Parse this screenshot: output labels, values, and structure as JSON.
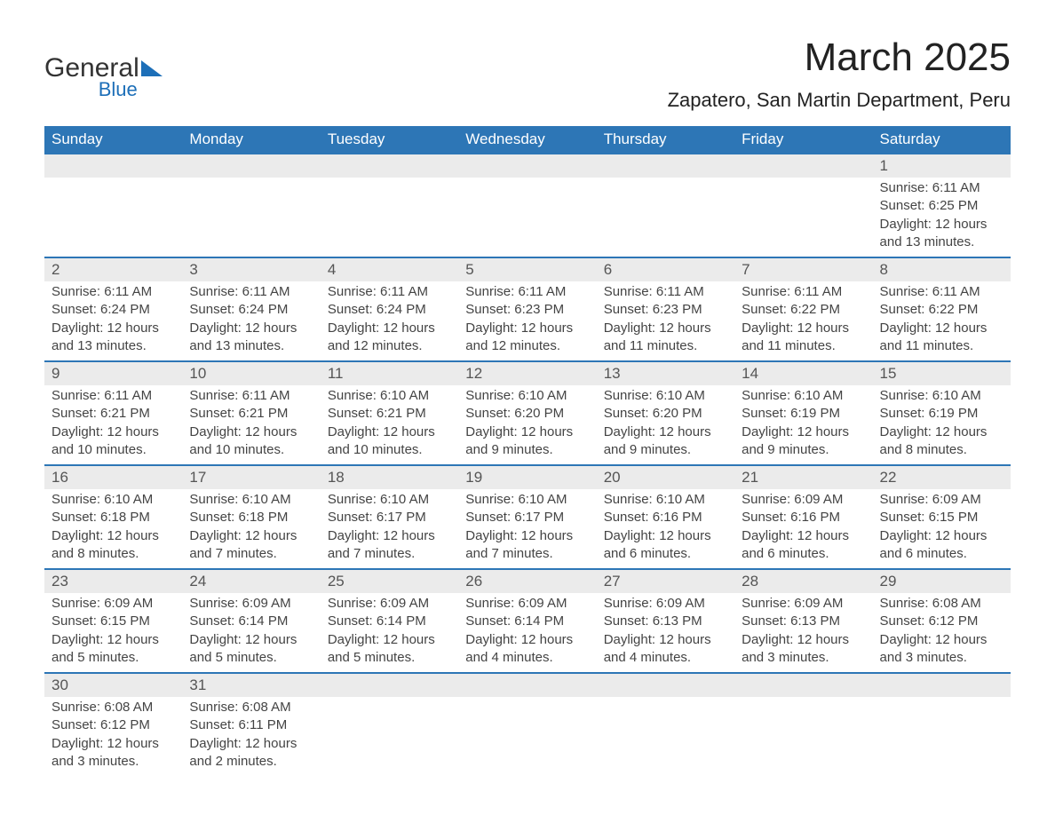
{
  "header": {
    "logo_text_1": "General",
    "logo_text_2": "Blue",
    "month_title": "March 2025",
    "location": "Zapatero, San Martin Department, Peru"
  },
  "styling": {
    "header_bg": "#2d76b6",
    "header_text_color": "#ffffff",
    "daynum_bg": "#ebebeb",
    "body_text_color": "#444444",
    "row_border_color": "#2d76b6",
    "logo_accent": "#1d6fb8",
    "title_fontsize": 44,
    "location_fontsize": 22,
    "dow_fontsize": 17,
    "daynum_fontsize": 17,
    "data_fontsize": 15
  },
  "days_of_week": [
    "Sunday",
    "Monday",
    "Tuesday",
    "Wednesday",
    "Thursday",
    "Friday",
    "Saturday"
  ],
  "weeks": [
    [
      null,
      null,
      null,
      null,
      null,
      null,
      {
        "n": "1",
        "sunrise": "6:11 AM",
        "sunset": "6:25 PM",
        "daylight": "12 hours and 13 minutes."
      }
    ],
    [
      {
        "n": "2",
        "sunrise": "6:11 AM",
        "sunset": "6:24 PM",
        "daylight": "12 hours and 13 minutes."
      },
      {
        "n": "3",
        "sunrise": "6:11 AM",
        "sunset": "6:24 PM",
        "daylight": "12 hours and 13 minutes."
      },
      {
        "n": "4",
        "sunrise": "6:11 AM",
        "sunset": "6:24 PM",
        "daylight": "12 hours and 12 minutes."
      },
      {
        "n": "5",
        "sunrise": "6:11 AM",
        "sunset": "6:23 PM",
        "daylight": "12 hours and 12 minutes."
      },
      {
        "n": "6",
        "sunrise": "6:11 AM",
        "sunset": "6:23 PM",
        "daylight": "12 hours and 11 minutes."
      },
      {
        "n": "7",
        "sunrise": "6:11 AM",
        "sunset": "6:22 PM",
        "daylight": "12 hours and 11 minutes."
      },
      {
        "n": "8",
        "sunrise": "6:11 AM",
        "sunset": "6:22 PM",
        "daylight": "12 hours and 11 minutes."
      }
    ],
    [
      {
        "n": "9",
        "sunrise": "6:11 AM",
        "sunset": "6:21 PM",
        "daylight": "12 hours and 10 minutes."
      },
      {
        "n": "10",
        "sunrise": "6:11 AM",
        "sunset": "6:21 PM",
        "daylight": "12 hours and 10 minutes."
      },
      {
        "n": "11",
        "sunrise": "6:10 AM",
        "sunset": "6:21 PM",
        "daylight": "12 hours and 10 minutes."
      },
      {
        "n": "12",
        "sunrise": "6:10 AM",
        "sunset": "6:20 PM",
        "daylight": "12 hours and 9 minutes."
      },
      {
        "n": "13",
        "sunrise": "6:10 AM",
        "sunset": "6:20 PM",
        "daylight": "12 hours and 9 minutes."
      },
      {
        "n": "14",
        "sunrise": "6:10 AM",
        "sunset": "6:19 PM",
        "daylight": "12 hours and 9 minutes."
      },
      {
        "n": "15",
        "sunrise": "6:10 AM",
        "sunset": "6:19 PM",
        "daylight": "12 hours and 8 minutes."
      }
    ],
    [
      {
        "n": "16",
        "sunrise": "6:10 AM",
        "sunset": "6:18 PM",
        "daylight": "12 hours and 8 minutes."
      },
      {
        "n": "17",
        "sunrise": "6:10 AM",
        "sunset": "6:18 PM",
        "daylight": "12 hours and 7 minutes."
      },
      {
        "n": "18",
        "sunrise": "6:10 AM",
        "sunset": "6:17 PM",
        "daylight": "12 hours and 7 minutes."
      },
      {
        "n": "19",
        "sunrise": "6:10 AM",
        "sunset": "6:17 PM",
        "daylight": "12 hours and 7 minutes."
      },
      {
        "n": "20",
        "sunrise": "6:10 AM",
        "sunset": "6:16 PM",
        "daylight": "12 hours and 6 minutes."
      },
      {
        "n": "21",
        "sunrise": "6:09 AM",
        "sunset": "6:16 PM",
        "daylight": "12 hours and 6 minutes."
      },
      {
        "n": "22",
        "sunrise": "6:09 AM",
        "sunset": "6:15 PM",
        "daylight": "12 hours and 6 minutes."
      }
    ],
    [
      {
        "n": "23",
        "sunrise": "6:09 AM",
        "sunset": "6:15 PM",
        "daylight": "12 hours and 5 minutes."
      },
      {
        "n": "24",
        "sunrise": "6:09 AM",
        "sunset": "6:14 PM",
        "daylight": "12 hours and 5 minutes."
      },
      {
        "n": "25",
        "sunrise": "6:09 AM",
        "sunset": "6:14 PM",
        "daylight": "12 hours and 5 minutes."
      },
      {
        "n": "26",
        "sunrise": "6:09 AM",
        "sunset": "6:14 PM",
        "daylight": "12 hours and 4 minutes."
      },
      {
        "n": "27",
        "sunrise": "6:09 AM",
        "sunset": "6:13 PM",
        "daylight": "12 hours and 4 minutes."
      },
      {
        "n": "28",
        "sunrise": "6:09 AM",
        "sunset": "6:13 PM",
        "daylight": "12 hours and 3 minutes."
      },
      {
        "n": "29",
        "sunrise": "6:08 AM",
        "sunset": "6:12 PM",
        "daylight": "12 hours and 3 minutes."
      }
    ],
    [
      {
        "n": "30",
        "sunrise": "6:08 AM",
        "sunset": "6:12 PM",
        "daylight": "12 hours and 3 minutes."
      },
      {
        "n": "31",
        "sunrise": "6:08 AM",
        "sunset": "6:11 PM",
        "daylight": "12 hours and 2 minutes."
      },
      null,
      null,
      null,
      null,
      null
    ]
  ],
  "labels": {
    "sunrise_prefix": "Sunrise: ",
    "sunset_prefix": "Sunset: ",
    "daylight_prefix": "Daylight: "
  }
}
